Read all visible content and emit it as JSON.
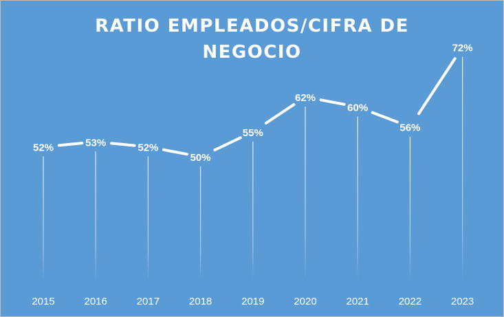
{
  "chart_data": {
    "type": "line",
    "title_lines": [
      "RATIO EMPLEADOS/CIFRA DE",
      "NEGOCIO"
    ],
    "categories": [
      "2015",
      "2016",
      "2017",
      "2018",
      "2019",
      "2020",
      "2021",
      "2022",
      "2023"
    ],
    "values": [
      52,
      53,
      52,
      50,
      55,
      62,
      60,
      56,
      72
    ],
    "data_labels": [
      "52%",
      "53%",
      "52%",
      "50%",
      "55%",
      "62%",
      "60%",
      "56%",
      "72%"
    ],
    "value_unit": "%",
    "ylim": [
      0,
      100
    ],
    "grid": false,
    "drop_lines": true,
    "legend": "none",
    "colors": {
      "background": "#5b9bd5",
      "line": "#ffffff",
      "text": "#ffffff"
    }
  }
}
